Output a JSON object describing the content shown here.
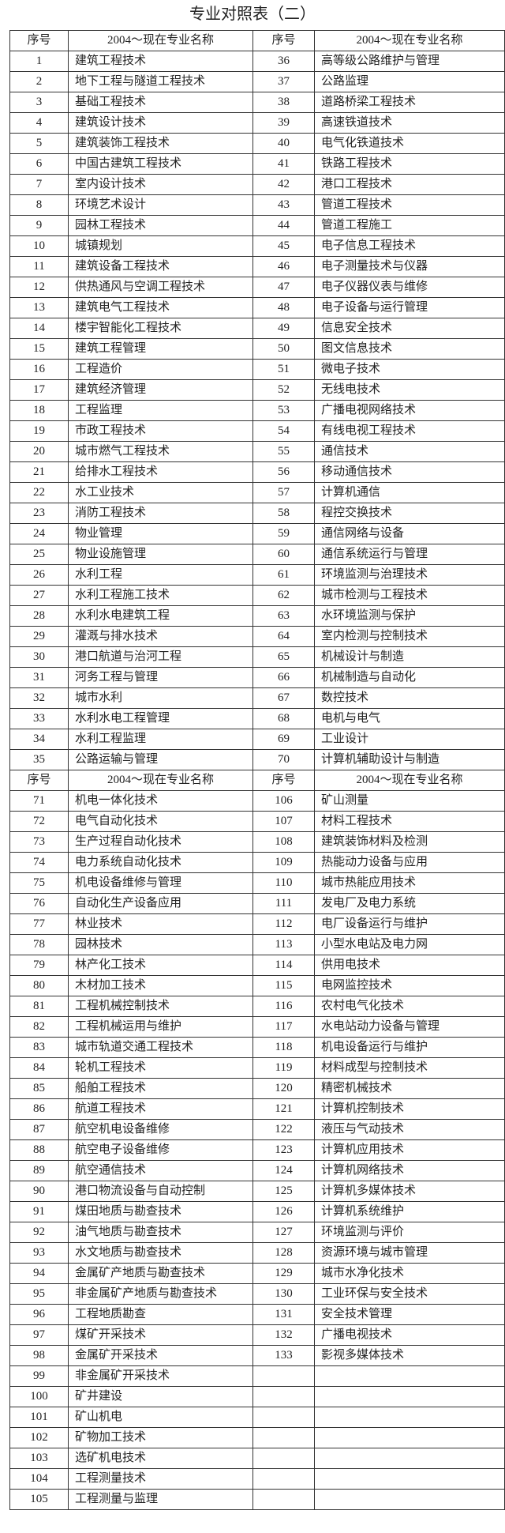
{
  "title": "专业对照表（二）",
  "header": {
    "seq": "序号",
    "name": "2004～现在专业名称"
  },
  "sections": [
    {
      "rows": [
        [
          "1",
          "建筑工程技术",
          "36",
          "高等级公路维护与管理"
        ],
        [
          "2",
          "地下工程与隧道工程技术",
          "37",
          "公路监理"
        ],
        [
          "3",
          "基础工程技术",
          "38",
          "道路桥梁工程技术"
        ],
        [
          "4",
          "建筑设计技术",
          "39",
          "高速铁道技术"
        ],
        [
          "5",
          "建筑装饰工程技术",
          "40",
          "电气化铁道技术"
        ],
        [
          "6",
          "中国古建筑工程技术",
          "41",
          "铁路工程技术"
        ],
        [
          "7",
          "室内设计技术",
          "42",
          "港口工程技术"
        ],
        [
          "8",
          "环境艺术设计",
          "43",
          "管道工程技术"
        ],
        [
          "9",
          "园林工程技术",
          "44",
          "管道工程施工"
        ],
        [
          "10",
          "城镇规划",
          "45",
          "电子信息工程技术"
        ],
        [
          "11",
          "建筑设备工程技术",
          "46",
          "电子测量技术与仪器"
        ],
        [
          "12",
          "供热通风与空调工程技术",
          "47",
          "电子仪器仪表与维修"
        ],
        [
          "13",
          "建筑电气工程技术",
          "48",
          "电子设备与运行管理"
        ],
        [
          "14",
          "楼宇智能化工程技术",
          "49",
          "信息安全技术"
        ],
        [
          "15",
          "建筑工程管理",
          "50",
          "图文信息技术"
        ],
        [
          "16",
          "工程造价",
          "51",
          "微电子技术"
        ],
        [
          "17",
          "建筑经济管理",
          "52",
          "无线电技术"
        ],
        [
          "18",
          "工程监理",
          "53",
          "广播电视网络技术"
        ],
        [
          "19",
          "市政工程技术",
          "54",
          "有线电视工程技术"
        ],
        [
          "20",
          "城市燃气工程技术",
          "55",
          "通信技术"
        ],
        [
          "21",
          "给排水工程技术",
          "56",
          "移动通信技术"
        ],
        [
          "22",
          "水工业技术",
          "57",
          "计算机通信"
        ],
        [
          "23",
          "消防工程技术",
          "58",
          "程控交换技术"
        ],
        [
          "24",
          "物业管理",
          "59",
          "通信网络与设备"
        ],
        [
          "25",
          "物业设施管理",
          "60",
          "通信系统运行与管理"
        ],
        [
          "26",
          "水利工程",
          "61",
          "环境监测与治理技术"
        ],
        [
          "27",
          "水利工程施工技术",
          "62",
          "城市检测与工程技术"
        ],
        [
          "28",
          "水利水电建筑工程",
          "63",
          "水环境监测与保护"
        ],
        [
          "29",
          "灌溉与排水技术",
          "64",
          "室内检测与控制技术"
        ],
        [
          "30",
          "港口航道与治河工程",
          "65",
          "机械设计与制造"
        ],
        [
          "31",
          "河务工程与管理",
          "66",
          "机械制造与自动化"
        ],
        [
          "32",
          "城市水利",
          "67",
          "数控技术"
        ],
        [
          "33",
          "水利水电工程管理",
          "68",
          "电机与电气"
        ],
        [
          "34",
          "水利工程监理",
          "69",
          "工业设计"
        ],
        [
          "35",
          "公路运输与管理",
          "70",
          "计算机辅助设计与制造"
        ]
      ]
    },
    {
      "rows": [
        [
          "71",
          "机电一体化技术",
          "106",
          "矿山测量"
        ],
        [
          "72",
          "电气自动化技术",
          "107",
          "材料工程技术"
        ],
        [
          "73",
          "生产过程自动化技术",
          "108",
          "建筑装饰材料及检测"
        ],
        [
          "74",
          "电力系统自动化技术",
          "109",
          "热能动力设备与应用"
        ],
        [
          "75",
          "机电设备维修与管理",
          "110",
          "城市热能应用技术"
        ],
        [
          "76",
          "自动化生产设备应用",
          "111",
          "发电厂及电力系统"
        ],
        [
          "77",
          "林业技术",
          "112",
          "电厂设备运行与维护"
        ],
        [
          "78",
          "园林技术",
          "113",
          "小型水电站及电力网"
        ],
        [
          "79",
          "林产化工技术",
          "114",
          "供用电技术"
        ],
        [
          "80",
          "木材加工技术",
          "115",
          "电网监控技术"
        ],
        [
          "81",
          "工程机械控制技术",
          "116",
          "农村电气化技术"
        ],
        [
          "82",
          "工程机械运用与维护",
          "117",
          "水电站动力设备与管理"
        ],
        [
          "83",
          "城市轨道交通工程技术",
          "118",
          "机电设备运行与维护"
        ],
        [
          "84",
          "轮机工程技术",
          "119",
          "材料成型与控制技术"
        ],
        [
          "85",
          "船舶工程技术",
          "120",
          "精密机械技术"
        ],
        [
          "86",
          "航道工程技术",
          "121",
          "计算机控制技术"
        ],
        [
          "87",
          "航空机电设备维修",
          "122",
          "液压与气动技术"
        ],
        [
          "88",
          "航空电子设备维修",
          "123",
          "计算机应用技术"
        ],
        [
          "89",
          "航空通信技术",
          "124",
          "计算机网络技术"
        ],
        [
          "90",
          "港口物流设备与自动控制",
          "125",
          "计算机多媒体技术"
        ],
        [
          "91",
          "煤田地质与勘查技术",
          "126",
          "计算机系统维护"
        ],
        [
          "92",
          "油气地质与勘查技术",
          "127",
          "环境监测与评价"
        ],
        [
          "93",
          "水文地质与勘查技术",
          "128",
          "资源环境与城市管理"
        ],
        [
          "94",
          "金属矿产地质与勘查技术",
          "129",
          "城市水净化技术"
        ],
        [
          "95",
          "非金属矿产地质与勘查技术",
          "130",
          "工业环保与安全技术"
        ],
        [
          "96",
          "工程地质勘查",
          "131",
          "安全技术管理"
        ],
        [
          "97",
          "煤矿开采技术",
          "132",
          "广播电视技术"
        ],
        [
          "98",
          "金属矿开采技术",
          "133",
          "影视多媒体技术"
        ],
        [
          "99",
          "非金属矿开采技术",
          "",
          ""
        ],
        [
          "100",
          "矿井建设",
          "",
          ""
        ],
        [
          "101",
          "矿山机电",
          "",
          ""
        ],
        [
          "102",
          "矿物加工技术",
          "",
          ""
        ],
        [
          "103",
          "选矿机电技术",
          "",
          ""
        ],
        [
          "104",
          "工程测量技术",
          "",
          ""
        ],
        [
          "105",
          "工程测量与监理",
          "",
          ""
        ]
      ]
    }
  ]
}
